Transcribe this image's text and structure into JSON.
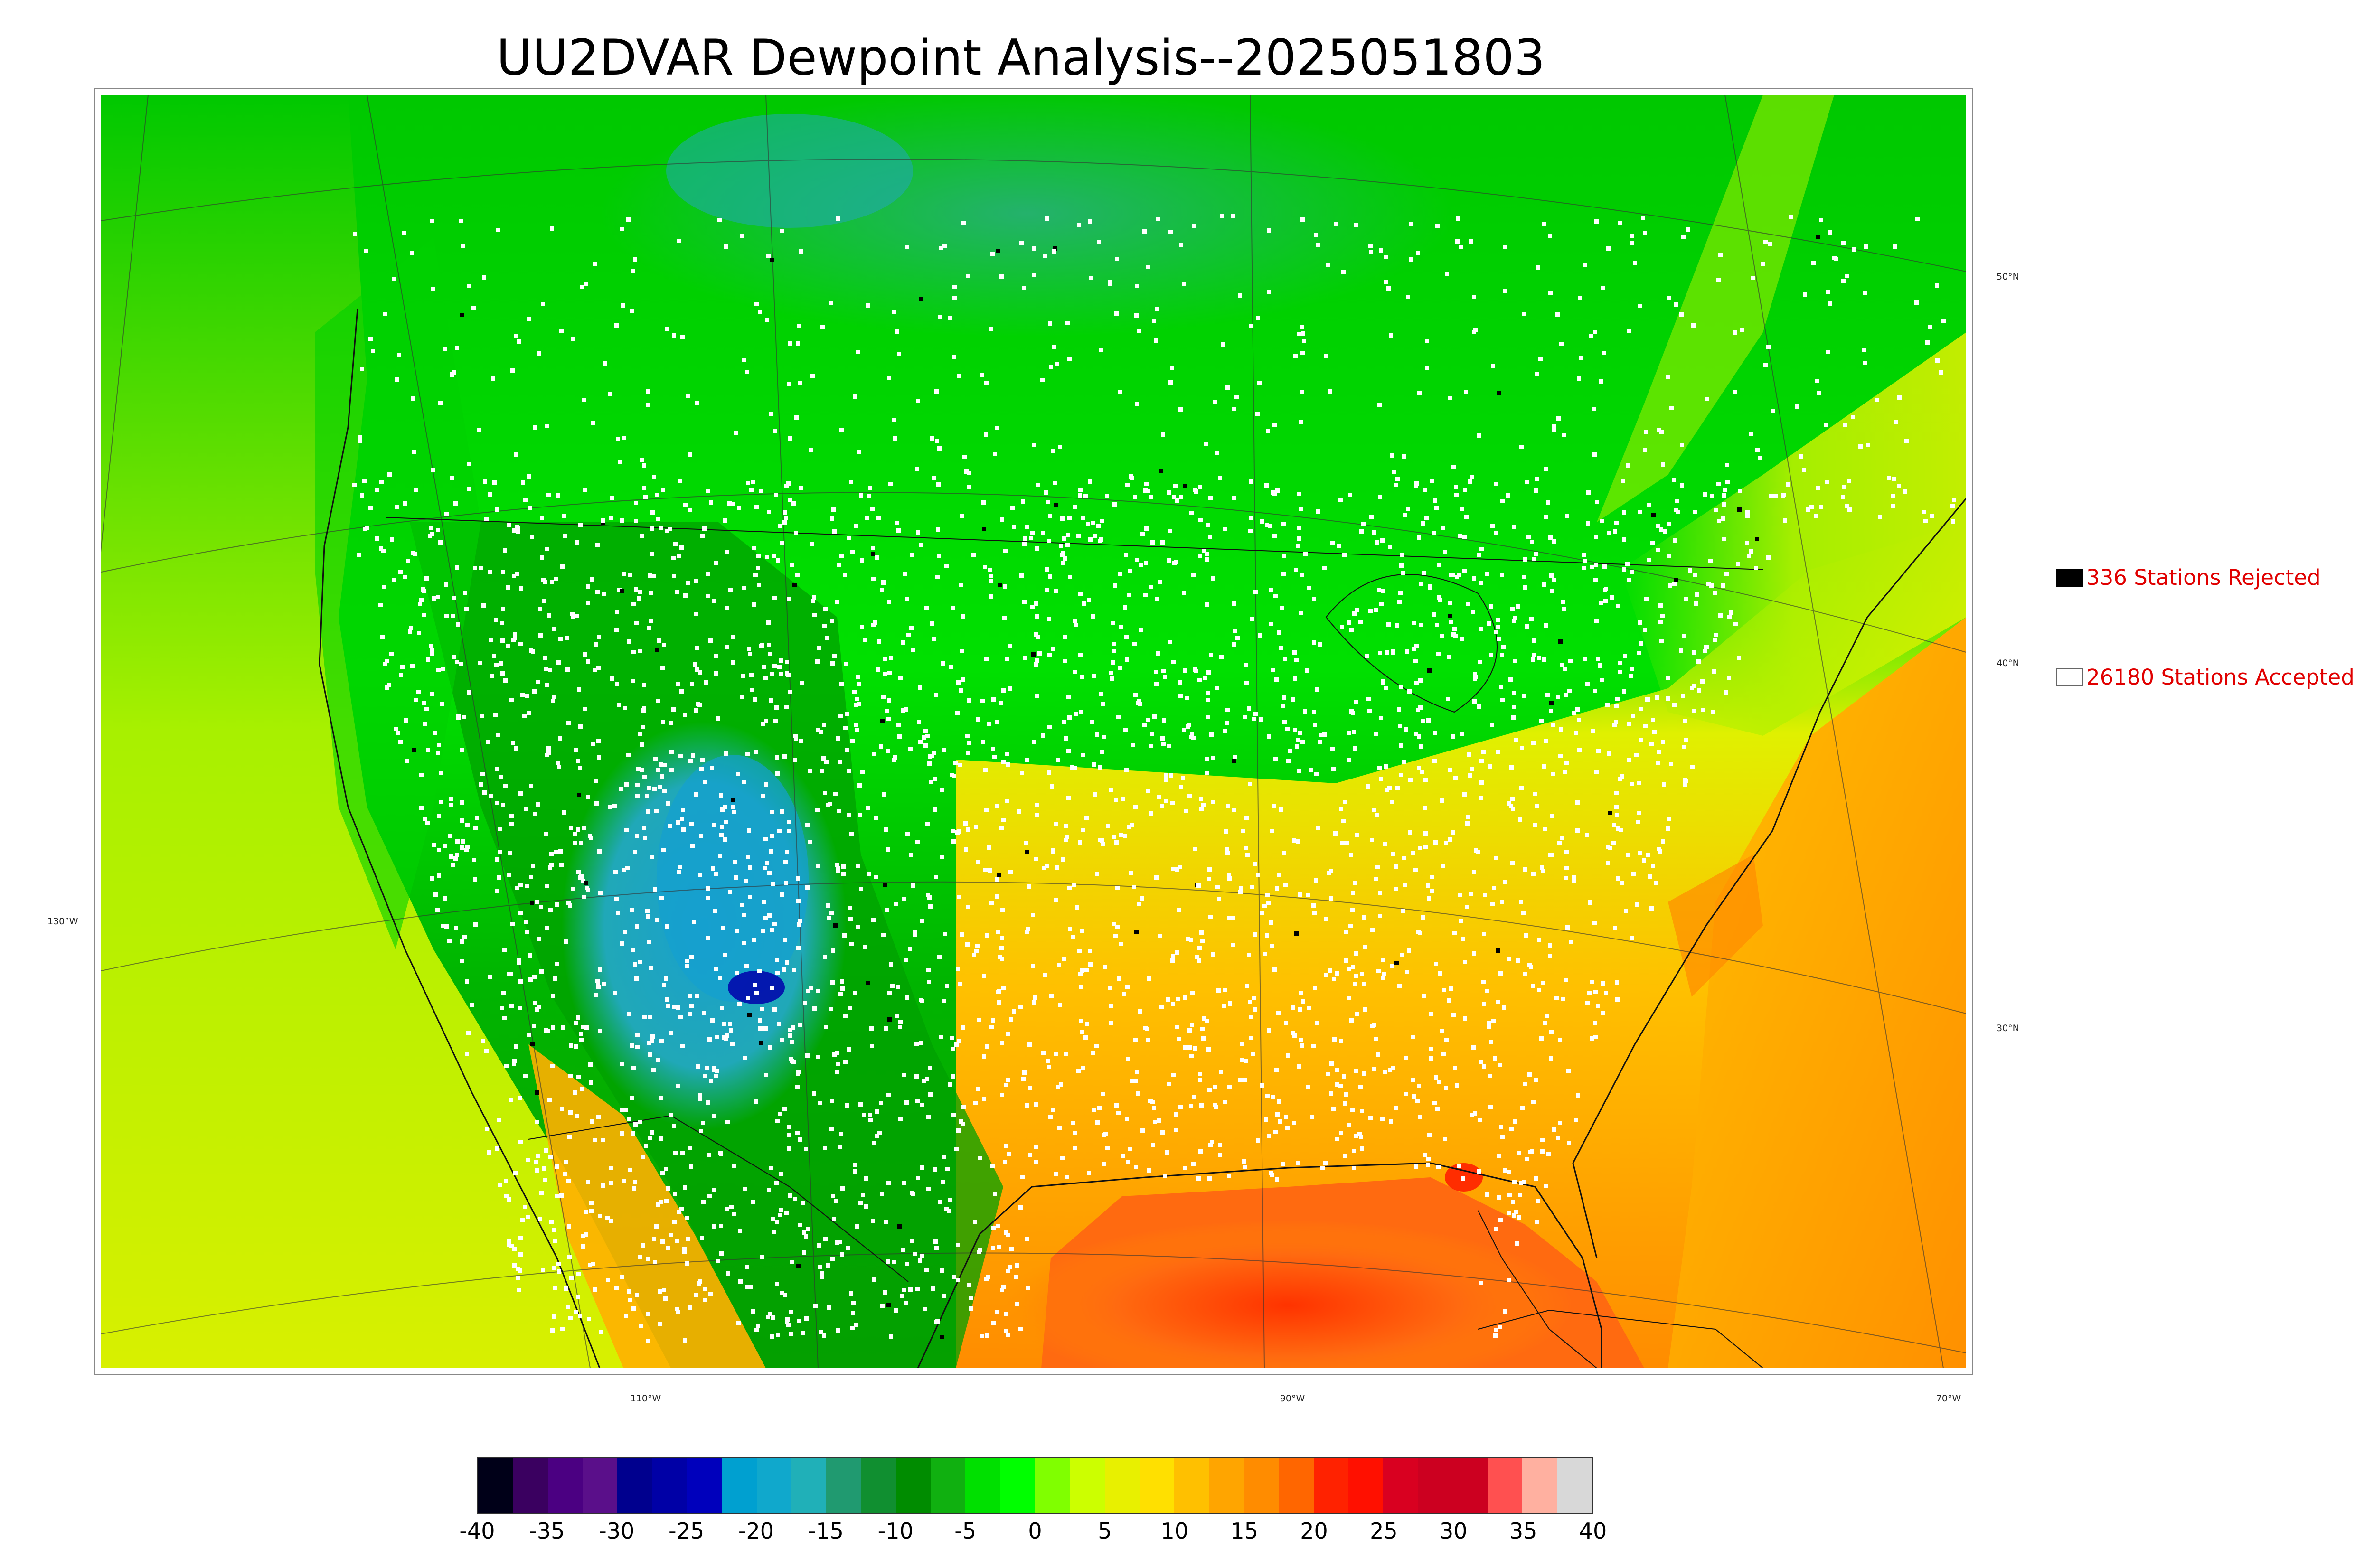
{
  "title": "UU2DVAR Dewpoint Analysis--2025051803",
  "legend": {
    "rejected_label": "336 Stations Rejected",
    "accepted_label": "26180 Stations Accepted",
    "rejected_color": "#000000",
    "accepted_color": "#ffffff",
    "text_color": "#e00000"
  },
  "graticule": {
    "lon_labels": [
      "110°W",
      "90°W",
      "70°W"
    ],
    "lat_labels": [
      "50°N",
      "40°N",
      "30°N"
    ],
    "west_label": "130°W"
  },
  "colorbar": {
    "ticks": [
      "-40",
      "-35",
      "-30",
      "-25",
      "-20",
      "-15",
      "-10",
      "-5",
      "0",
      "5",
      "10",
      "15",
      "20",
      "25",
      "30",
      "35",
      "40"
    ],
    "colors": [
      "#000018",
      "#3a0060",
      "#4b0082",
      "#5a0f8a",
      "#00008e",
      "#0000a6",
      "#0000bc",
      "#00a0d0",
      "#10a8cc",
      "#20b0b8",
      "#209a70",
      "#108f30",
      "#008c00",
      "#10b010",
      "#00e000",
      "#00ff00",
      "#80ff00",
      "#ccff00",
      "#e8f000",
      "#ffe000",
      "#ffc000",
      "#ffa500",
      "#ff8c00",
      "#ff6600",
      "#ff2200",
      "#ff1000",
      "#d90020",
      "#cc0020",
      "#cc0020",
      "#ff5050",
      "#ffb0a0",
      "#d8d8d8"
    ]
  },
  "map": {
    "colors": {
      "land_low": "#00e000",
      "land_north": "#10c010",
      "dry_west": "#00a000",
      "four_corners": "#20a8c8",
      "gulf": "#ff6a10",
      "atlantic": "#ffb000",
      "pacific": "#d8f000",
      "south": "#ffa500",
      "northeast": "#90ee40"
    }
  }
}
